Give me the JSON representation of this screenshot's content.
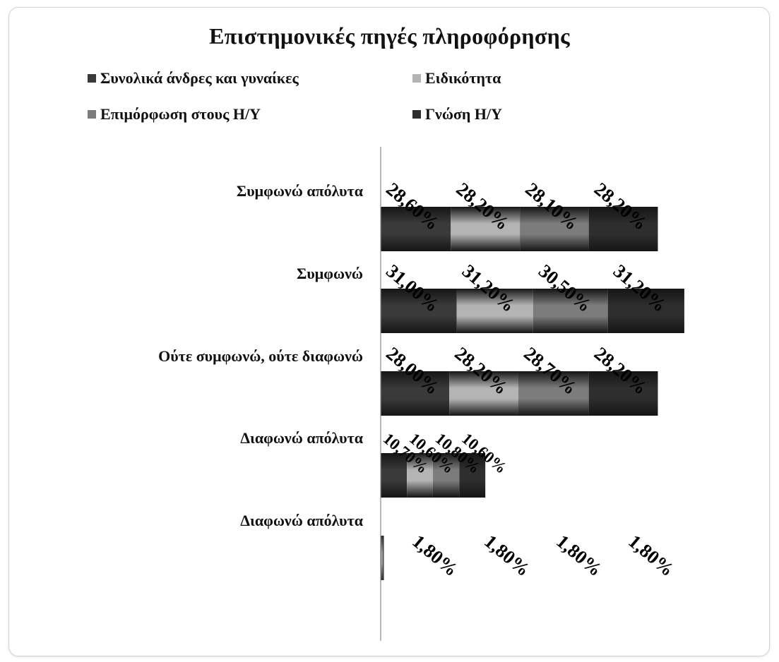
{
  "chart_data": {
    "type": "bar",
    "orientation": "horizontal",
    "stacked": true,
    "title": "Επιστημονικές πηγές πληροφόρησης",
    "categories": [
      "Συμφωνώ απόλυτα",
      "Συμφωνώ",
      "Ούτε συμφωνώ, ούτε διαφωνώ",
      "Διαφωνώ απόλυτα",
      "Διαφωνώ απόλυτα"
    ],
    "series": [
      {
        "name": "Συνολικά άνδρες και γυναίκες",
        "color": "#3a3a3a",
        "values": [
          28.6,
          31.0,
          28.0,
          10.7,
          1.8
        ],
        "labels": [
          "28,60%",
          "31,00%",
          "28,00%",
          "10,70%",
          "1,80%"
        ]
      },
      {
        "name": "Ειδικότητα",
        "color": "#b4b4b4",
        "values": [
          28.2,
          31.2,
          28.2,
          10.6,
          1.8
        ],
        "labels": [
          "28,20%",
          "31,20%",
          "28,20%",
          "10,60%",
          "1,80%"
        ]
      },
      {
        "name": "Επιμόρφωση στους Η/Υ",
        "color": "#7c7c7c",
        "values": [
          28.1,
          30.5,
          28.7,
          10.8,
          1.8
        ],
        "labels": [
          "28,10%",
          "30,50%",
          "28,70%",
          "10,80%",
          "1,80%"
        ]
      },
      {
        "name": "Γνώση Η/Υ",
        "color": "#2e2e2e",
        "values": [
          28.2,
          31.2,
          28.2,
          10.6,
          1.8
        ],
        "labels": [
          "28,20%",
          "31,20%",
          "28,20%",
          "10,60%",
          "1,80%"
        ]
      }
    ],
    "legend_position": "top",
    "grid": false
  }
}
